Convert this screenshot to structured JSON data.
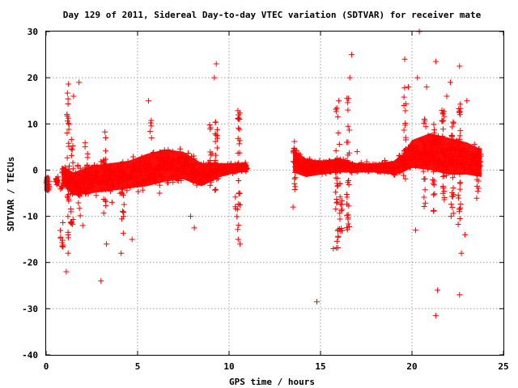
{
  "chart_data": {
    "type": "scatter",
    "title": "Day 129 of 2011, Sidereal Day-to-day VTEC variation (SDTVAR) for receiver mate",
    "xlabel": "GPS time / hours",
    "ylabel": "SDTVAR / TECUs",
    "xlim": [
      0,
      25
    ],
    "ylim": [
      -40,
      30
    ],
    "x_ticks": [
      0,
      5,
      10,
      15,
      20,
      25
    ],
    "y_ticks": [
      -40,
      -30,
      -20,
      -10,
      0,
      10,
      20,
      30
    ],
    "x_tick_labels": [
      "0",
      "5",
      "10",
      "15",
      "20",
      "25"
    ],
    "y_tick_labels": [
      "-40",
      "-30",
      "-20",
      "-10",
      "0",
      "10",
      "20",
      "30"
    ],
    "grid": true,
    "marker": "+",
    "color": "#ff0000",
    "band": {
      "description": "approximate center line and half-width of the dense scatter band (hours, TECU)",
      "segments": [
        {
          "points": [
            [
              -0.1,
              -3,
              1.5
            ],
            [
              0.1,
              -3,
              2
            ],
            [
              0.2,
              -3,
              1.5
            ]
          ]
        },
        {
          "points": [
            [
              0.5,
              -2.5,
              0.8
            ],
            [
              0.7,
              -2.5,
              1
            ]
          ]
        },
        {
          "points": [
            [
              0.85,
              -1,
              2
            ],
            [
              1.5,
              -3,
              2.5
            ],
            [
              2.5,
              -2,
              3
            ],
            [
              3.5,
              -1.5,
              3
            ],
            [
              4.5,
              -1,
              3
            ],
            [
              5.5,
              0,
              3.5
            ],
            [
              6.5,
              1,
              3.5
            ],
            [
              7.5,
              1,
              3
            ],
            [
              8.5,
              -1,
              2.5
            ],
            [
              9.5,
              0,
              1.5
            ],
            [
              10.5,
              0.5,
              1
            ],
            [
              11,
              0.5,
              1
            ]
          ]
        },
        {
          "points": [
            [
              13.5,
              2,
              2.5
            ],
            [
              14.2,
              0.5,
              2
            ],
            [
              15,
              0.5,
              1.5
            ],
            [
              16,
              1,
              1.5
            ],
            [
              17,
              0.5,
              1
            ],
            [
              18,
              0.5,
              1
            ],
            [
              19,
              0.5,
              1.5
            ],
            [
              19.5,
              1.5,
              2
            ],
            [
              20,
              3.5,
              3
            ],
            [
              21,
              4,
              4
            ],
            [
              22,
              3,
              4
            ],
            [
              23,
              2.5,
              3.5
            ],
            [
              23.8,
              1.5,
              3
            ]
          ]
        }
      ]
    },
    "spikes": [
      {
        "x": 0.85,
        "y_min": -17,
        "y_max": -2
      },
      {
        "x": 1.2,
        "y_min": -15,
        "y_max": 19
      },
      {
        "x": 1.4,
        "y_min": -12,
        "y_max": 8
      },
      {
        "x": 1.8,
        "y_min": -10,
        "y_max": 4
      },
      {
        "x": 2.2,
        "y_min": -4,
        "y_max": 7
      },
      {
        "x": 3.2,
        "y_min": -10,
        "y_max": 9
      },
      {
        "x": 4.2,
        "y_min": -17,
        "y_max": 3
      },
      {
        "x": 5.7,
        "y_min": -2,
        "y_max": 11
      },
      {
        "x": 9.0,
        "y_min": -4,
        "y_max": 10
      },
      {
        "x": 9.3,
        "y_min": -5,
        "y_max": 13
      },
      {
        "x": 10.4,
        "y_min": -11,
        "y_max": -5
      },
      {
        "x": 10.55,
        "y_min": -15,
        "y_max": 13
      },
      {
        "x": 13.6,
        "y_min": -5,
        "y_max": 7
      },
      {
        "x": 15.9,
        "y_min": -17,
        "y_max": 14
      },
      {
        "x": 16.1,
        "y_min": -14,
        "y_max": 6
      },
      {
        "x": 16.5,
        "y_min": -13,
        "y_max": 16
      },
      {
        "x": 19.6,
        "y_min": -3,
        "y_max": 18
      },
      {
        "x": 20.7,
        "y_min": -8,
        "y_max": 12
      },
      {
        "x": 21.2,
        "y_min": -9,
        "y_max": 11
      },
      {
        "x": 21.7,
        "y_min": -10,
        "y_max": 15
      },
      {
        "x": 22.2,
        "y_min": -12,
        "y_max": 12
      },
      {
        "x": 22.6,
        "y_min": -15,
        "y_max": 15
      },
      {
        "x": 23.6,
        "y_min": -9,
        "y_max": 5
      }
    ],
    "outliers": [
      [
        1.1,
        -22
      ],
      [
        1.2,
        -18
      ],
      [
        1.5,
        16
      ],
      [
        1.8,
        19
      ],
      [
        3.0,
        -24
      ],
      [
        3.3,
        -16
      ],
      [
        4.1,
        -18
      ],
      [
        4.7,
        -15
      ],
      [
        5.6,
        15
      ],
      [
        7.9,
        -10
      ],
      [
        8.1,
        -12.5
      ],
      [
        9.2,
        20
      ],
      [
        9.3,
        23
      ],
      [
        10.5,
        -15
      ],
      [
        10.6,
        -16
      ],
      [
        13.5,
        -8
      ],
      [
        14.8,
        -28.5
      ],
      [
        15.7,
        -17
      ],
      [
        16.0,
        15
      ],
      [
        16.5,
        13
      ],
      [
        16.6,
        20
      ],
      [
        16.7,
        25
      ],
      [
        17.0,
        4
      ],
      [
        19.6,
        24
      ],
      [
        19.8,
        18
      ],
      [
        20.2,
        -13
      ],
      [
        20.3,
        20
      ],
      [
        20.4,
        30
      ],
      [
        21.3,
        23.5
      ],
      [
        21.4,
        -26
      ],
      [
        21.3,
        -31.5
      ],
      [
        22.1,
        19
      ],
      [
        22.6,
        22.5
      ],
      [
        22.7,
        -18
      ],
      [
        22.6,
        -27
      ],
      [
        23.0,
        15
      ],
      [
        22.9,
        -14
      ],
      [
        20.8,
        18
      ],
      [
        21.9,
        16
      ],
      [
        6.2,
        -5
      ],
      [
        3.6,
        -7
      ],
      [
        2.0,
        -12
      ]
    ]
  }
}
